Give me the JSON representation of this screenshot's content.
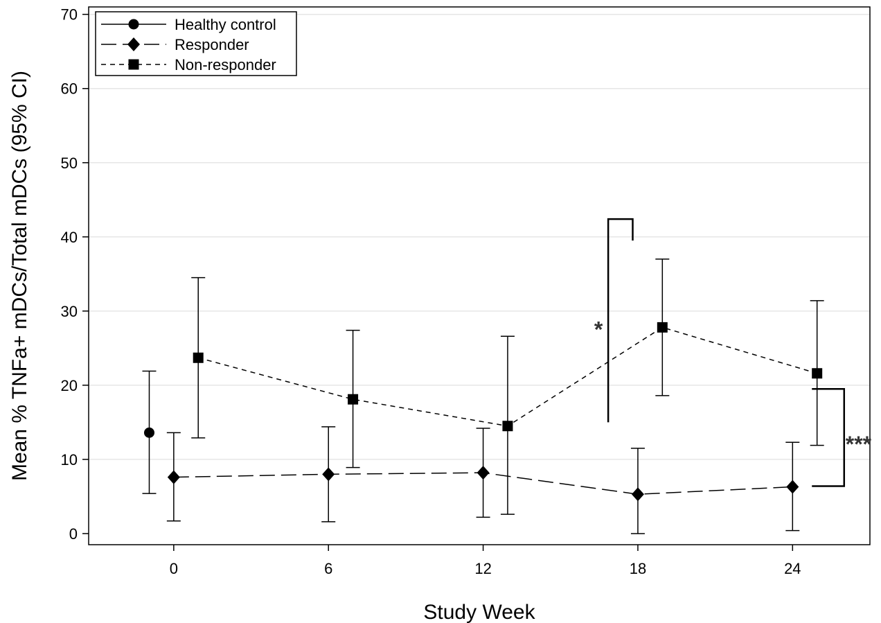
{
  "chart_data": {
    "type": "line",
    "title": "",
    "xlabel": "Study Week",
    "ylabel": "Mean %  TNFa+ mDCs/Total mDCs (95% CI)",
    "x_ticks": [
      0,
      6,
      12,
      18,
      24
    ],
    "y_ticks": [
      0,
      10,
      20,
      30,
      40,
      50,
      60,
      70
    ],
    "xlim": [
      -3.3,
      27
    ],
    "ylim": [
      -1.5,
      71
    ],
    "grid": "horizontal",
    "legend_position": "top-left",
    "series": [
      {
        "name": "Healthy control",
        "marker": "circle",
        "line_style": "solid",
        "points": [
          {
            "x": 0,
            "y": 13.6,
            "lower": 5.4,
            "upper": 21.9
          }
        ]
      },
      {
        "name": "Responder",
        "marker": "diamond",
        "line_style": "long-dash",
        "points": [
          {
            "x": 0,
            "y": 7.6,
            "lower": 1.7,
            "upper": 13.6
          },
          {
            "x": 6,
            "y": 8.0,
            "lower": 1.6,
            "upper": 14.4
          },
          {
            "x": 12,
            "y": 8.2,
            "lower": 2.2,
            "upper": 14.2
          },
          {
            "x": 18,
            "y": 5.3,
            "lower": 0.0,
            "upper": 11.5
          },
          {
            "x": 24,
            "y": 6.3,
            "lower": 0.4,
            "upper": 12.3
          }
        ]
      },
      {
        "name": "Non-responder",
        "marker": "square",
        "line_style": "short-dash",
        "points": [
          {
            "x": 0,
            "y": 23.7,
            "lower": 12.9,
            "upper": 34.5
          },
          {
            "x": 6,
            "y": 18.1,
            "lower": 8.9,
            "upper": 27.4
          },
          {
            "x": 12,
            "y": 14.5,
            "lower": 2.6,
            "upper": 26.6
          },
          {
            "x": 18,
            "y": 27.8,
            "lower": 18.6,
            "upper": 37.0
          },
          {
            "x": 24,
            "y": 21.6,
            "lower": 11.9,
            "upper": 31.4
          }
        ]
      }
    ],
    "annotations": [
      {
        "text": "*",
        "week": 18
      },
      {
        "text": "***",
        "week": 24
      }
    ]
  }
}
